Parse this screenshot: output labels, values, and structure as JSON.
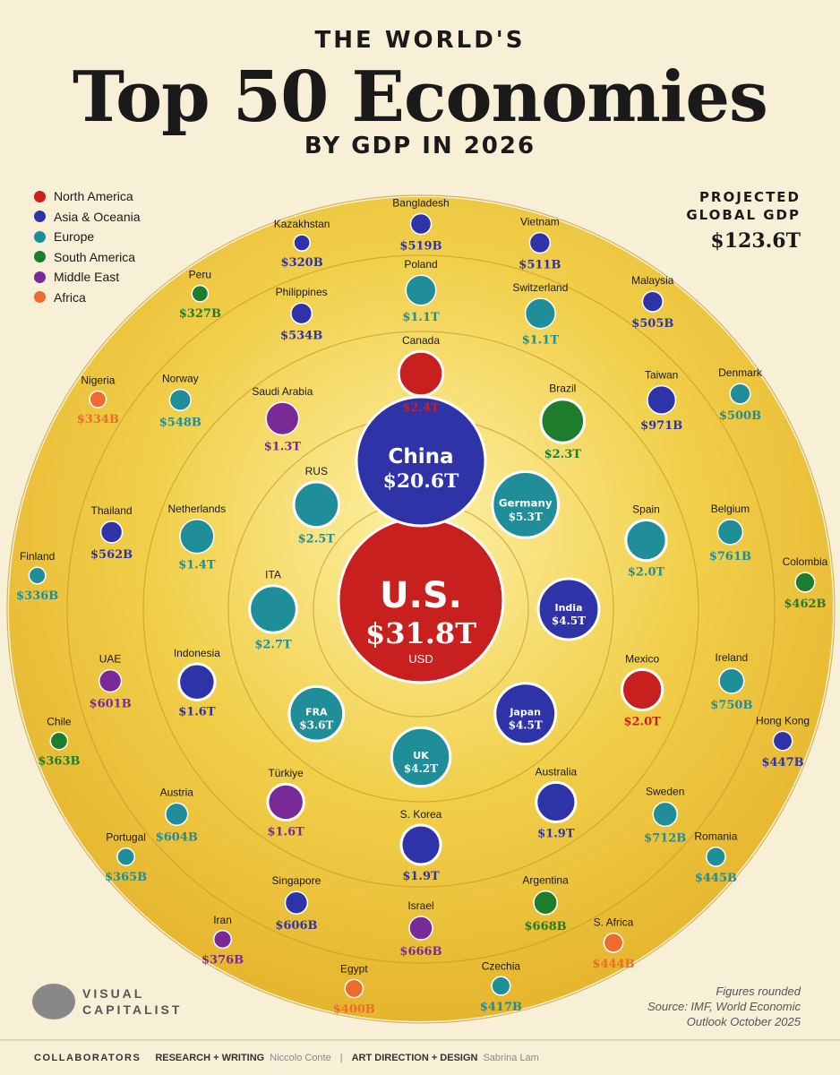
{
  "header": {
    "top": "THE WORLD'S",
    "title": "Top 50 Economies",
    "subtitle": "BY GDP IN 2026"
  },
  "legend": [
    {
      "label": "North America",
      "color": "#c8201f"
    },
    {
      "label": "Asia & Oceania",
      "color": "#2f33a8"
    },
    {
      "label": "Europe",
      "color": "#1f8e99"
    },
    {
      "label": "South America",
      "color": "#1e7d2c"
    },
    {
      "label": "Middle East",
      "color": "#7a2a96"
    },
    {
      "label": "Africa",
      "color": "#ee6a2e"
    }
  ],
  "projected": {
    "label_line1": "PROJECTED",
    "label_line2": "GLOBAL GDP",
    "value": "$123.6T"
  },
  "chart_data": {
    "type": "bubble",
    "unit": "USD",
    "region_colors": {
      "NA": "#c8201f",
      "AS": "#2f33a8",
      "EU": "#1f8e99",
      "SA": "#1e7d2c",
      "ME": "#7a2a96",
      "AF": "#ee6a2e"
    },
    "countries": [
      {
        "name": "U.S.",
        "value": "$31.8T",
        "gdp": 31.8,
        "region": "NA",
        "unit": "USD",
        "ring": 0,
        "angle": 0
      },
      {
        "name": "China",
        "value": "$20.6T",
        "gdp": 20.6,
        "region": "AS",
        "ring": 1,
        "angle": -90
      },
      {
        "name": "Germany",
        "value": "$5.3T",
        "gdp": 5.3,
        "region": "EU",
        "ring": 1,
        "angle": -45
      },
      {
        "name": "India",
        "value": "$4.5T",
        "gdp": 4.5,
        "region": "AS",
        "ring": 1,
        "angle": 0
      },
      {
        "name": "Japan",
        "value": "$4.5T",
        "gdp": 4.5,
        "region": "AS",
        "ring": 1,
        "angle": 45
      },
      {
        "name": "UK",
        "value": "$4.2T",
        "gdp": 4.2,
        "region": "EU",
        "ring": 1,
        "angle": 90
      },
      {
        "name": "FRA",
        "value": "$3.6T",
        "gdp": 3.6,
        "region": "EU",
        "ring": 1,
        "angle": 135
      },
      {
        "name": "ITA",
        "value": "$2.7T",
        "gdp": 2.7,
        "region": "EU",
        "ring": 1,
        "angle": 180
      },
      {
        "name": "RUS",
        "value": "$2.5T",
        "gdp": 2.5,
        "region": "EU",
        "ring": 1,
        "angle": -135
      },
      {
        "name": "Canada",
        "value": "$2.4T",
        "gdp": 2.4,
        "region": "NA",
        "ring": 2,
        "angle": -90
      },
      {
        "name": "Brazil",
        "value": "$2.3T",
        "gdp": 2.3,
        "region": "SA",
        "ring": 2,
        "angle": -53
      },
      {
        "name": "Spain",
        "value": "$2.0T",
        "gdp": 2.0,
        "region": "EU",
        "ring": 2,
        "angle": -17
      },
      {
        "name": "Mexico",
        "value": "$2.0T",
        "gdp": 2.0,
        "region": "NA",
        "ring": 2,
        "angle": 20
      },
      {
        "name": "Australia",
        "value": "$1.9T",
        "gdp": 1.9,
        "region": "AS",
        "ring": 2,
        "angle": 55
      },
      {
        "name": "S. Korea",
        "value": "$1.9T",
        "gdp": 1.9,
        "region": "AS",
        "ring": 2,
        "angle": 90
      },
      {
        "name": "Türkiye",
        "value": "$1.6T",
        "gdp": 1.6,
        "region": "ME",
        "ring": 2,
        "angle": 125
      },
      {
        "name": "Indonesia",
        "value": "$1.6T",
        "gdp": 1.6,
        "region": "AS",
        "ring": 2,
        "angle": 162
      },
      {
        "name": "Netherlands",
        "value": "$1.4T",
        "gdp": 1.4,
        "region": "EU",
        "ring": 2,
        "angle": 198
      },
      {
        "name": "Saudi Arabia",
        "value": "$1.3T",
        "gdp": 1.3,
        "region": "ME",
        "ring": 2,
        "angle": 234
      },
      {
        "name": "Poland",
        "value": "$1.1T",
        "gdp": 1.1,
        "region": "EU",
        "ring": 3,
        "angle": -90
      },
      {
        "name": "Switzerland",
        "value": "$1.1T",
        "gdp": 1.1,
        "region": "EU",
        "ring": 3,
        "angle": -68
      },
      {
        "name": "Taiwan",
        "value": "$971B",
        "gdp": 0.971,
        "region": "AS",
        "ring": 3,
        "angle": -41
      },
      {
        "name": "Belgium",
        "value": "$761B",
        "gdp": 0.761,
        "region": "EU",
        "ring": 3,
        "angle": -14
      },
      {
        "name": "Ireland",
        "value": "$750B",
        "gdp": 0.75,
        "region": "EU",
        "ring": 3,
        "angle": 13
      },
      {
        "name": "Sweden",
        "value": "$712B",
        "gdp": 0.712,
        "region": "EU",
        "ring": 3,
        "angle": 40
      },
      {
        "name": "Argentina",
        "value": "$668B",
        "gdp": 0.668,
        "region": "SA",
        "ring": 3,
        "angle": 67
      },
      {
        "name": "Israel",
        "value": "$666B",
        "gdp": 0.666,
        "region": "ME",
        "ring": 3,
        "angle": 90
      },
      {
        "name": "Singapore",
        "value": "$606B",
        "gdp": 0.606,
        "region": "AS",
        "ring": 3,
        "angle": 113
      },
      {
        "name": "Austria",
        "value": "$604B",
        "gdp": 0.604,
        "region": "EU",
        "ring": 3,
        "angle": 140
      },
      {
        "name": "UAE",
        "value": "$601B",
        "gdp": 0.601,
        "region": "ME",
        "ring": 3,
        "angle": 167
      },
      {
        "name": "Thailand",
        "value": "$562B",
        "gdp": 0.562,
        "region": "AS",
        "ring": 3,
        "angle": 194
      },
      {
        "name": "Norway",
        "value": "$548B",
        "gdp": 0.548,
        "region": "EU",
        "ring": 3,
        "angle": 221
      },
      {
        "name": "Philippines",
        "value": "$534B",
        "gdp": 0.534,
        "region": "AS",
        "ring": 3,
        "angle": 248
      },
      {
        "name": "Bangladesh",
        "value": "$519B",
        "gdp": 0.519,
        "region": "AS",
        "ring": 4,
        "angle": -90
      },
      {
        "name": "Vietnam",
        "value": "$511B",
        "gdp": 0.511,
        "region": "AS",
        "ring": 4,
        "angle": -72
      },
      {
        "name": "Malaysia",
        "value": "$505B",
        "gdp": 0.505,
        "region": "AS",
        "ring": 4,
        "angle": -53
      },
      {
        "name": "Denmark",
        "value": "$500B",
        "gdp": 0.5,
        "region": "EU",
        "ring": 4,
        "angle": -34
      },
      {
        "name": "Colombia",
        "value": "$462B",
        "gdp": 0.462,
        "region": "SA",
        "ring": 4,
        "angle": -4
      },
      {
        "name": "Hong Kong",
        "value": "$447B",
        "gdp": 0.447,
        "region": "AS",
        "ring": 4,
        "angle": 20
      },
      {
        "name": "Romania",
        "value": "$445B",
        "gdp": 0.445,
        "region": "EU",
        "ring": 4,
        "angle": 40
      },
      {
        "name": "S. Africa",
        "value": "$444B",
        "gdp": 0.444,
        "region": "AF",
        "ring": 4,
        "angle": 60
      },
      {
        "name": "Czechia",
        "value": "$417B",
        "gdp": 0.417,
        "region": "EU",
        "ring": 4,
        "angle": 78
      },
      {
        "name": "Egypt",
        "value": "$400B",
        "gdp": 0.4,
        "region": "AF",
        "ring": 4,
        "angle": 100
      },
      {
        "name": "Iran",
        "value": "$376B",
        "gdp": 0.376,
        "region": "ME",
        "ring": 4,
        "angle": 121
      },
      {
        "name": "Portugal",
        "value": "$365B",
        "gdp": 0.365,
        "region": "EU",
        "ring": 4,
        "angle": 140
      },
      {
        "name": "Chile",
        "value": "$363B",
        "gdp": 0.363,
        "region": "SA",
        "ring": 4,
        "angle": 160
      },
      {
        "name": "Finland",
        "value": "$336B",
        "gdp": 0.336,
        "region": "EU",
        "ring": 4,
        "angle": 185
      },
      {
        "name": "Nigeria",
        "value": "$334B",
        "gdp": 0.334,
        "region": "AF",
        "ring": 4,
        "angle": 213
      },
      {
        "name": "Peru",
        "value": "$327B",
        "gdp": 0.327,
        "region": "SA",
        "ring": 4,
        "angle": 235
      },
      {
        "name": "Kazakhstan",
        "value": "$320B",
        "gdp": 0.32,
        "region": "AS",
        "ring": 4,
        "angle": 252
      }
    ]
  },
  "brand": {
    "line1": "VISUAL",
    "line2": "CAPITALIST"
  },
  "note": {
    "line1": "Figures rounded",
    "line2": "Source: IMF, World Economic",
    "line3": "Outlook October 2025"
  },
  "footer": {
    "collaborators": "COLLABORATORS",
    "research_label": "RESEARCH + WRITING",
    "research_name": "Niccolo Conte",
    "art_label": "ART DIRECTION + DESIGN",
    "art_name": "Sabrina Lam"
  }
}
